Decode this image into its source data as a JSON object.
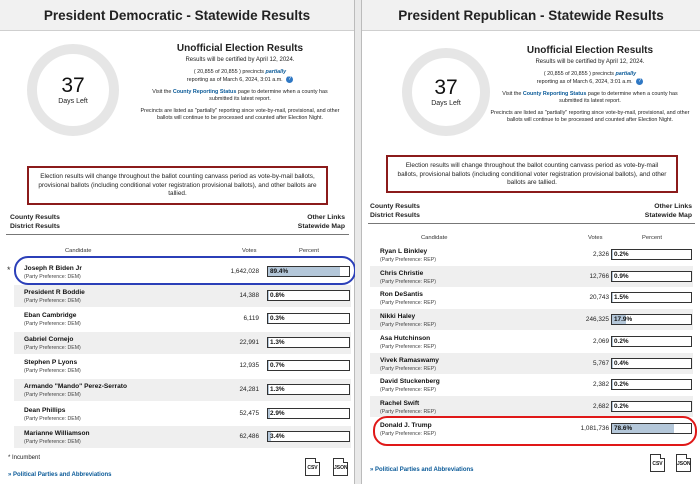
{
  "left": {
    "title": "President Democratic - Statewide Results",
    "days_num": "37",
    "days_label": "Days Left",
    "heading": "Unofficial Election Results",
    "certified": "Results will be certified by April 12, 2024.",
    "precincts_prefix": "( 20,855 of 20,855 ) precincts",
    "precincts_em": "partially",
    "reporting_as_of": "reporting as of March 6, 2024, 3:01 a.m.",
    "status_pre": "Visit the",
    "status_link": "County Reporting Status",
    "status_post": "page to determine when a county has submitted its latest report.",
    "partial_note": "Precincts are listed as \"partially\" reporting since vote-by-mail, provisional, and other ballots will continue to be processed and counted after Election Night.",
    "notice": "Election results will change throughout the ballot counting canvass period as vote-by-mail ballots, provisional ballots (including conditional voter registration provisional ballots), and other ballots are tallied.",
    "county_results": "County Results",
    "district_results": "District Results",
    "other_links": "Other Links",
    "statewide_map": "Statewide Map",
    "col_candidate": "Candidate",
    "col_votes": "Votes",
    "col_percent": "Percent",
    "incumbent_marker": "*",
    "candidates": [
      {
        "name": "Joseph R Biden Jr",
        "pref": "(Party Preference: DEM)",
        "votes": "1,642,028",
        "pct_label": "89.4%",
        "pct": 89.4
      },
      {
        "name": "President R Boddie",
        "pref": "(Party Preference: DEM)",
        "votes": "14,388",
        "pct_label": "0.8%",
        "pct": 0.8
      },
      {
        "name": "Eban Cambridge",
        "pref": "(Party Preference: DEM)",
        "votes": "6,119",
        "pct_label": "0.3%",
        "pct": 0.3
      },
      {
        "name": "Gabriel Cornejo",
        "pref": "(Party Preference: DEM)",
        "votes": "22,991",
        "pct_label": "1.3%",
        "pct": 1.3
      },
      {
        "name": "Stephen P Lyons",
        "pref": "(Party Preference: DEM)",
        "votes": "12,935",
        "pct_label": "0.7%",
        "pct": 0.7
      },
      {
        "name": "Armando \"Mando\" Perez-Serrato",
        "pref": "(Party Preference: DEM)",
        "votes": "24,281",
        "pct_label": "1.3%",
        "pct": 1.3
      },
      {
        "name": "Dean Phillips",
        "pref": "(Party Preference: DEM)",
        "votes": "52,475",
        "pct_label": "2.9%",
        "pct": 2.9
      },
      {
        "name": "Marianne Williamson",
        "pref": "(Party Preference: DEM)",
        "votes": "62,486",
        "pct_label": "3.4%",
        "pct": 3.4
      }
    ],
    "incumbent_note": "* Incumbent",
    "parties_link": "Political Parties and Abbreviations",
    "parties_arrow": "»",
    "csv_label": "CSV",
    "json_label": "JSON"
  },
  "right": {
    "title": "President Republican - Statewide Results",
    "days_num": "37",
    "days_label": "Days Left",
    "heading": "Unofficial Election Results",
    "certified": "Results will be certified by April 12, 2024.",
    "precincts_prefix": "( 20,855 of 20,855 ) precincts",
    "precincts_em": "partially",
    "reporting_as_of": "reporting as of March 6, 2024, 3:01 a.m.",
    "status_pre": "Visit the",
    "status_link": "County Reporting Status",
    "status_post": "page to determine when a county has submitted its latest report.",
    "partial_note": "Precincts are listed as \"partially\" reporting since vote-by-mail, provisional, and other ballots will continue to be processed and counted after Election Night.",
    "notice": "Election results will change throughout the ballot counting canvass period as vote-by-mail ballots, provisional ballots (including conditional voter registration provisional ballots), and other ballots are tallied.",
    "county_results": "County Results",
    "district_results": "District Results",
    "other_links": "Other Links",
    "statewide_map": "Statewide Map",
    "col_candidate": "Candidate",
    "col_votes": "Votes",
    "col_percent": "Percent",
    "candidates": [
      {
        "name": "Ryan L Binkley",
        "pref": "(Party Preference: REP)",
        "votes": "2,326",
        "pct_label": "0.2%",
        "pct": 0.2
      },
      {
        "name": "Chris Christie",
        "pref": "(Party Preference: REP)",
        "votes": "12,766",
        "pct_label": "0.9%",
        "pct": 0.9
      },
      {
        "name": "Ron DeSantis",
        "pref": "(Party Preference: REP)",
        "votes": "20,743",
        "pct_label": "1.5%",
        "pct": 1.5
      },
      {
        "name": "Nikki Haley",
        "pref": "(Party Preference: REP)",
        "votes": "246,325",
        "pct_label": "17.9%",
        "pct": 17.9
      },
      {
        "name": "Asa Hutchinson",
        "pref": "(Party Preference: REP)",
        "votes": "2,069",
        "pct_label": "0.2%",
        "pct": 0.2
      },
      {
        "name": "Vivek Ramaswamy",
        "pref": "(Party Preference: REP)",
        "votes": "5,767",
        "pct_label": "0.4%",
        "pct": 0.4
      },
      {
        "name": "David Stuckenberg",
        "pref": "(Party Preference: REP)",
        "votes": "2,382",
        "pct_label": "0.2%",
        "pct": 0.2
      },
      {
        "name": "Rachel Swift",
        "pref": "(Party Preference: REP)",
        "votes": "2,682",
        "pct_label": "0.2%",
        "pct": 0.2
      },
      {
        "name": "Donald J. Trump",
        "pref": "(Party Preference: REP)",
        "votes": "1,081,736",
        "pct_label": "78.6%",
        "pct": 78.6
      }
    ],
    "parties_link": "Political Parties and Abbreviations",
    "parties_arrow": "»",
    "csv_label": "CSV",
    "json_label": "JSON"
  },
  "colors": {
    "bar_fill": "#b4c7d9",
    "highlight_blue": "#2b3fb8",
    "highlight_red": "#e01818",
    "notice_border": "#8b1b1b",
    "link": "#0a5a98"
  }
}
